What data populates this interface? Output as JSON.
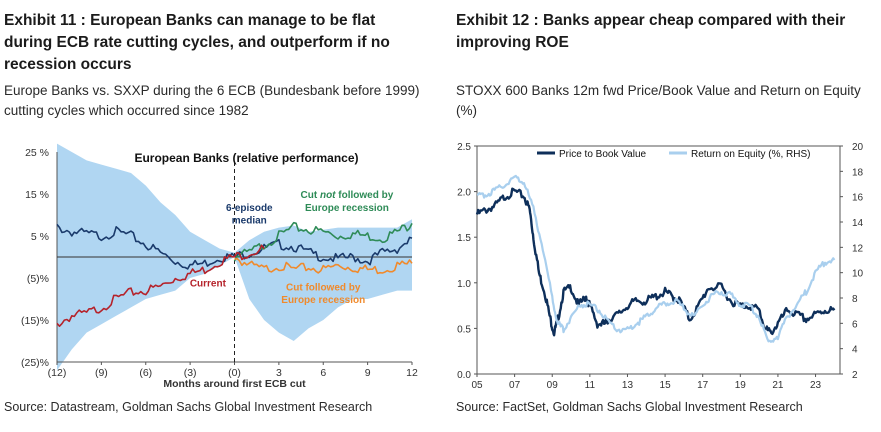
{
  "left_panel": {
    "title": "Exhibit 11 : European Banks can manage to be flat during ECB rate cutting cycles, and outperform if no recession occurs",
    "subtitle": "Europe Banks vs. SXXP during the 6 ECB (Bundesbank before 1999) cutting cycles which occurred since 1982",
    "source": "Source: Datastream, Goldman Sachs Global Investment Research"
  },
  "right_panel": {
    "title": "Exhibit 12 : Banks appear cheap compared with their improving ROE",
    "subtitle": "STOXX 600 Banks 12m fwd Price/Book Value and Return on Equity (%)",
    "source": "Source: FactSet, Goldman Sachs Global Investment Research"
  },
  "chart_data": [
    {
      "type": "line",
      "title": "European Banks (relative performance)",
      "xlabel": "Months around first ECB cut",
      "ylabel": "",
      "x_ticks": [
        "(12)",
        "(9)",
        "(6)",
        "(3)",
        "(0)",
        "3",
        "6",
        "9",
        "12"
      ],
      "x_tick_values": [
        -12,
        -9,
        -6,
        -3,
        0,
        3,
        6,
        9,
        12
      ],
      "y_ticks": [
        "25 %",
        "15 %",
        "5 %",
        "(5)%",
        "(15)%",
        "(25)%"
      ],
      "y_tick_values": [
        25,
        15,
        5,
        -5,
        -15,
        -25
      ],
      "xlim": [
        -12,
        12
      ],
      "ylim": [
        -25,
        25
      ],
      "annotations": [
        {
          "text": "6-episode",
          "x": 1.0,
          "y": 11
        },
        {
          "text": "median",
          "x": 1.0,
          "y": 8
        },
        {
          "text_parts": [
            "Cut ",
            "not",
            " followed by"
          ],
          "x": 7.6,
          "y": 14
        },
        {
          "text": "Europe recession",
          "x": 7.6,
          "y": 11
        },
        {
          "text": "Current",
          "x": -1.8,
          "y": -7
        },
        {
          "text": "Cut followed by",
          "x": 6.0,
          "y": -8
        },
        {
          "text": "Europe recession",
          "x": 6.0,
          "y": -11
        }
      ],
      "colors": {
        "range": "#b0d6f2",
        "median": "#1a3a6b",
        "no_recession": "#2e8b57",
        "recession": "#f08a2c",
        "current": "#b5232b"
      },
      "series": [
        {
          "name": "6-episode median",
          "role": "median",
          "x": [
            -12,
            -11,
            -10,
            -9,
            -8,
            -7,
            -6,
            -5,
            -4,
            -3,
            -2,
            -1,
            0,
            1,
            2,
            3,
            4,
            5,
            6,
            7,
            8,
            9,
            10,
            11,
            12
          ],
          "values": [
            7,
            6,
            5.5,
            5,
            6,
            5,
            3,
            1,
            -1,
            -2,
            -1.5,
            0,
            0,
            1,
            2,
            3,
            2.5,
            1,
            0,
            -0.5,
            0,
            -1,
            1,
            2,
            4.5
          ]
        },
        {
          "name": "Cut not followed by Europe recession",
          "role": "no_recession",
          "x": [
            0,
            1,
            2,
            3,
            4,
            5,
            6,
            7,
            8,
            9,
            10,
            11,
            12
          ],
          "values": [
            0,
            1,
            3,
            5,
            7,
            6.5,
            6,
            5,
            5.5,
            5,
            4.5,
            6,
            8
          ]
        },
        {
          "name": "Cut followed by Europe recession",
          "role": "recession",
          "x": [
            0,
            1,
            2,
            3,
            4,
            5,
            6,
            7,
            8,
            9,
            10,
            11,
            12
          ],
          "values": [
            0,
            -2,
            -3,
            -2,
            -3,
            -2.5,
            -3,
            -2,
            -2.5,
            -3,
            -3,
            -2,
            -1.5
          ]
        },
        {
          "name": "Current",
          "role": "current",
          "x": [
            -12,
            -11,
            -10,
            -9,
            -8,
            -7,
            -6,
            -5,
            -4,
            -3,
            -2,
            -1,
            0,
            1,
            2
          ],
          "values": [
            -16,
            -14,
            -13.5,
            -12,
            -10,
            -8.5,
            -8,
            -7,
            -5,
            -4,
            -3,
            -1,
            0,
            1,
            2
          ]
        }
      ],
      "range_band": {
        "x": [
          -12,
          -11,
          -10,
          -9,
          -8,
          -7,
          -6,
          -5,
          -4,
          -3,
          -2,
          -1,
          0,
          1,
          2,
          3,
          4,
          5,
          6,
          7,
          8,
          9,
          10,
          11,
          12
        ],
        "upper": [
          27,
          25,
          23,
          22,
          21,
          20,
          17,
          13,
          10,
          6,
          4,
          2,
          1,
          4,
          6,
          7,
          7.5,
          6,
          6.5,
          7,
          7,
          7,
          7,
          7,
          9
        ],
        "lower": [
          -27,
          -22,
          -18,
          -16,
          -14,
          -12,
          -10,
          -9,
          -8,
          -5,
          -4,
          -2,
          0,
          -10,
          -15,
          -18,
          -20,
          -17,
          -15,
          -12,
          -10,
          -10,
          -9,
          -8,
          -8
        ]
      }
    },
    {
      "type": "line",
      "title": "",
      "xlabel": "",
      "ylabel": "",
      "x_ticks": [
        "05",
        "07",
        "09",
        "11",
        "13",
        "15",
        "17",
        "19",
        "21",
        "23"
      ],
      "x_tick_values": [
        2005,
        2007,
        2009,
        2011,
        2013,
        2015,
        2017,
        2019,
        2021,
        2023
      ],
      "y_ticks": [
        "0.0",
        "0.5",
        "1.0",
        "1.5",
        "2.0",
        "2.5"
      ],
      "y_tick_values": [
        0,
        0.5,
        1.0,
        1.5,
        2.0,
        2.5
      ],
      "y2_ticks": [
        "2",
        "4",
        "6",
        "8",
        "10",
        "12",
        "14",
        "16",
        "18",
        "20"
      ],
      "y2_tick_values": [
        2,
        4,
        6,
        8,
        10,
        12,
        14,
        16,
        18,
        20
      ],
      "xlim": [
        2005,
        2024.3
      ],
      "ylim": [
        0,
        2.5
      ],
      "y2lim": [
        2,
        20
      ],
      "legend": "top",
      "colors": {
        "pb": "#0e2f5a",
        "roe": "#a9cfee"
      },
      "series": [
        {
          "name": "Price to Book Value",
          "axis": "left",
          "color": "#0e2f5a",
          "x": [
            2005,
            2005.5,
            2006,
            2006.5,
            2007,
            2007.5,
            2007.8,
            2008,
            2008.3,
            2008.6,
            2008.9,
            2009.1,
            2009.3,
            2009.6,
            2010,
            2010.4,
            2010.8,
            2011,
            2011.4,
            2011.8,
            2012,
            2012.5,
            2013,
            2013.5,
            2014,
            2014.5,
            2015,
            2015.4,
            2015.8,
            2016.3,
            2016.8,
            2017.3,
            2018,
            2018.5,
            2019,
            2019.5,
            2020,
            2020.3,
            2020.6,
            2021,
            2021.5,
            2022,
            2022.5,
            2023,
            2023.5,
            2024
          ],
          "values": [
            1.75,
            1.8,
            1.85,
            1.95,
            2.0,
            1.95,
            1.8,
            1.5,
            1.1,
            0.9,
            0.6,
            0.45,
            0.6,
            0.9,
            0.95,
            0.75,
            0.85,
            0.75,
            0.55,
            0.55,
            0.6,
            0.65,
            0.75,
            0.8,
            0.8,
            0.85,
            0.9,
            0.85,
            0.8,
            0.6,
            0.75,
            0.95,
            0.95,
            0.8,
            0.75,
            0.75,
            0.7,
            0.5,
            0.45,
            0.55,
            0.7,
            0.65,
            0.6,
            0.65,
            0.7,
            0.7
          ]
        },
        {
          "name": "Return on Equity (%, RHS)",
          "axis": "right",
          "color": "#a9cfee",
          "x": [
            2005,
            2005.5,
            2006,
            2006.5,
            2007,
            2007.5,
            2008,
            2008.5,
            2009,
            2009.3,
            2009.6,
            2010,
            2010.5,
            2011,
            2011.5,
            2012,
            2012.5,
            2013,
            2013.5,
            2014,
            2014.5,
            2015,
            2015.5,
            2016,
            2016.5,
            2017,
            2017.5,
            2018,
            2018.5,
            2019,
            2019.5,
            2020,
            2020.5,
            2021,
            2021.5,
            2022,
            2022.5,
            2023,
            2023.5,
            2024
          ],
          "values": [
            16,
            16.2,
            16.5,
            17,
            17.5,
            17.2,
            15,
            12,
            8,
            6,
            5.5,
            6.5,
            7.5,
            7.5,
            7,
            6,
            5.5,
            5.5,
            6,
            6.5,
            7.2,
            7.5,
            7.8,
            7.2,
            6.5,
            7.5,
            8.2,
            8.5,
            8.2,
            7.5,
            7.4,
            6.5,
            4.5,
            5,
            6.5,
            7.5,
            8.5,
            10,
            10.8,
            11
          ]
        }
      ]
    }
  ]
}
